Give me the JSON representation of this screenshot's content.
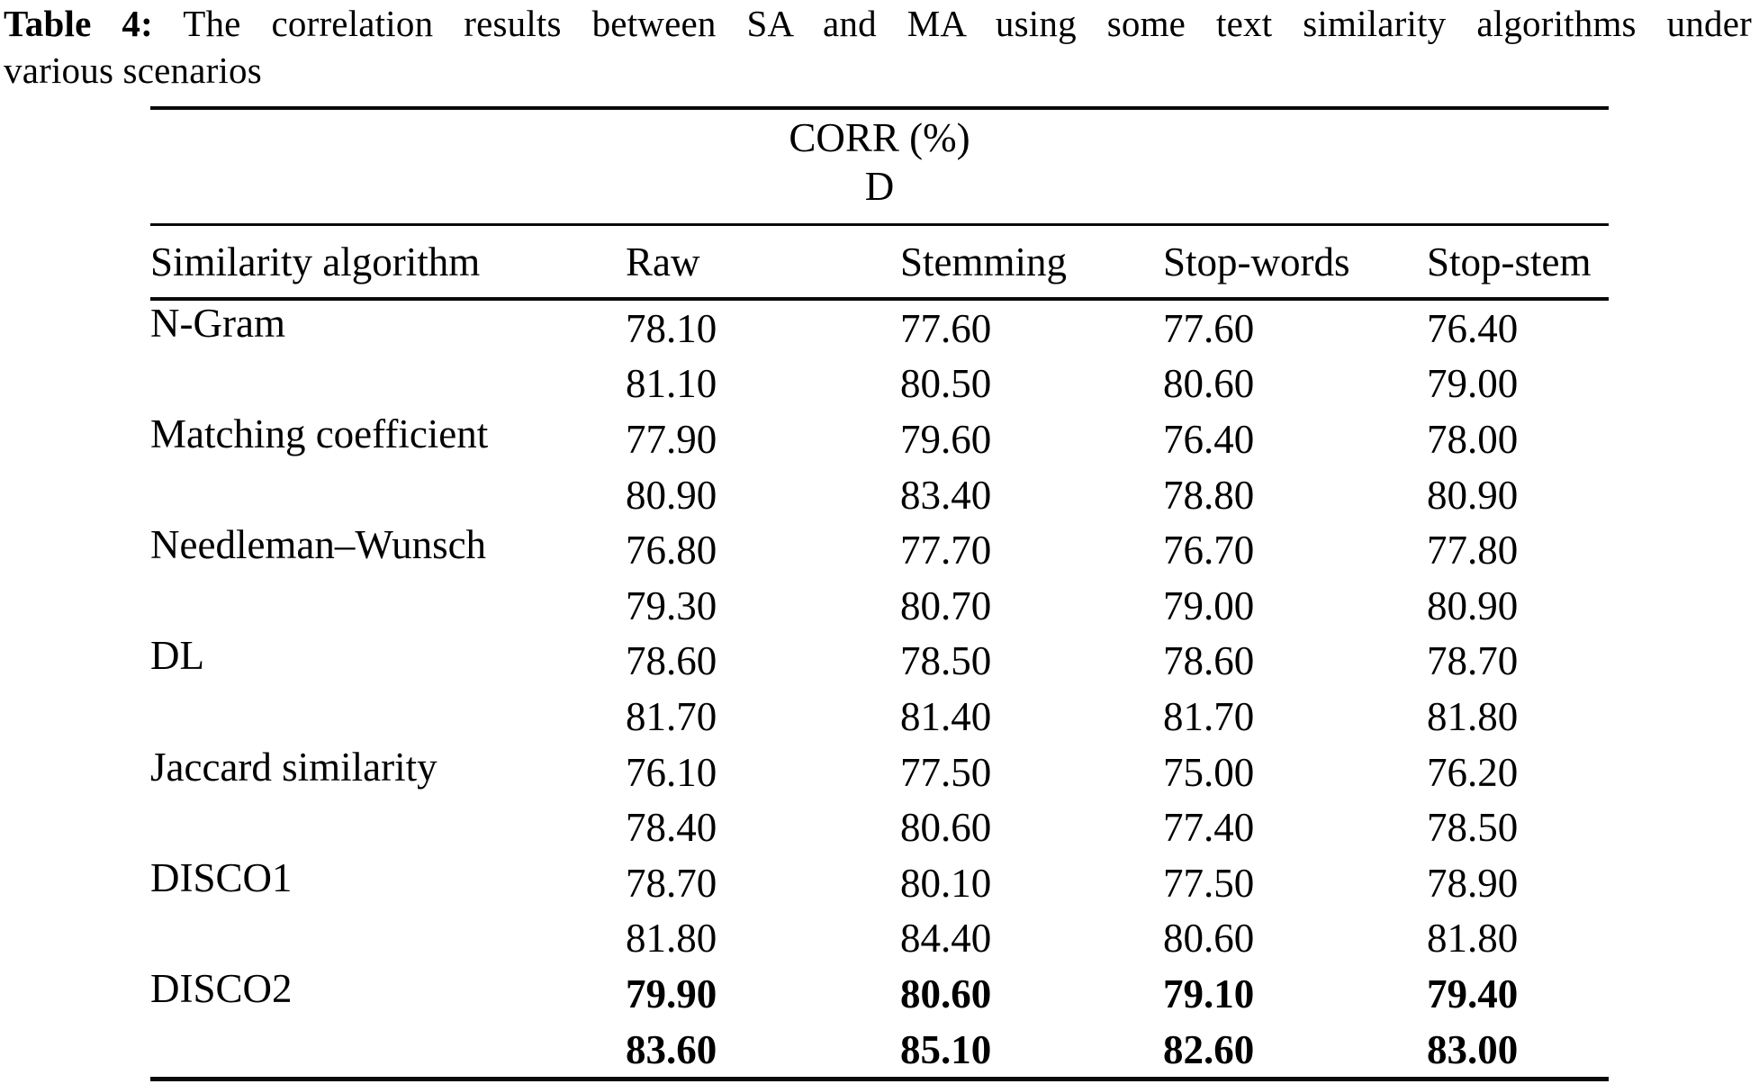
{
  "title": {
    "label": "Table 4:",
    "line1_rest": "The correlation results between SA and MA using some text similarity algorithms under",
    "line2": "various scenarios"
  },
  "table": {
    "span_header": {
      "line1": "CORR (%)",
      "line2": "D"
    },
    "columns": [
      "Similarity algorithm",
      "Raw",
      "Stemming",
      "Stop-words",
      "Stop-stem"
    ],
    "rows": [
      {
        "algorithm": "N-Gram",
        "bold": false,
        "corr": [
          "78.10",
          "77.60",
          "77.60",
          "76.40"
        ],
        "d": [
          "81.10",
          "80.50",
          "80.60",
          "79.00"
        ]
      },
      {
        "algorithm": "Matching coefficient",
        "bold": false,
        "corr": [
          "77.90",
          "79.60",
          "76.40",
          "78.00"
        ],
        "d": [
          "80.90",
          "83.40",
          "78.80",
          "80.90"
        ]
      },
      {
        "algorithm": "Needleman–Wunsch",
        "bold": false,
        "corr": [
          "76.80",
          "77.70",
          "76.70",
          "77.80"
        ],
        "d": [
          "79.30",
          "80.70",
          "79.00",
          "80.90"
        ]
      },
      {
        "algorithm": "DL",
        "bold": false,
        "corr": [
          "78.60",
          "78.50",
          "78.60",
          "78.70"
        ],
        "d": [
          "81.70",
          "81.40",
          "81.70",
          "81.80"
        ]
      },
      {
        "algorithm": "Jaccard similarity",
        "bold": false,
        "corr": [
          "76.10",
          "77.50",
          "75.00",
          "76.20"
        ],
        "d": [
          "78.40",
          "80.60",
          "77.40",
          "78.50"
        ]
      },
      {
        "algorithm": "DISCO1",
        "bold": false,
        "corr": [
          "78.70",
          "80.10",
          "77.50",
          "78.90"
        ],
        "d": [
          "81.80",
          "84.40",
          "80.60",
          "81.80"
        ]
      },
      {
        "algorithm": "DISCO2",
        "bold": true,
        "corr": [
          "79.90",
          "80.60",
          "79.10",
          "79.40"
        ],
        "d": [
          "83.60",
          "85.10",
          "82.60",
          "83.00"
        ]
      }
    ],
    "text_color": "#000000",
    "background": "#ffffff"
  }
}
